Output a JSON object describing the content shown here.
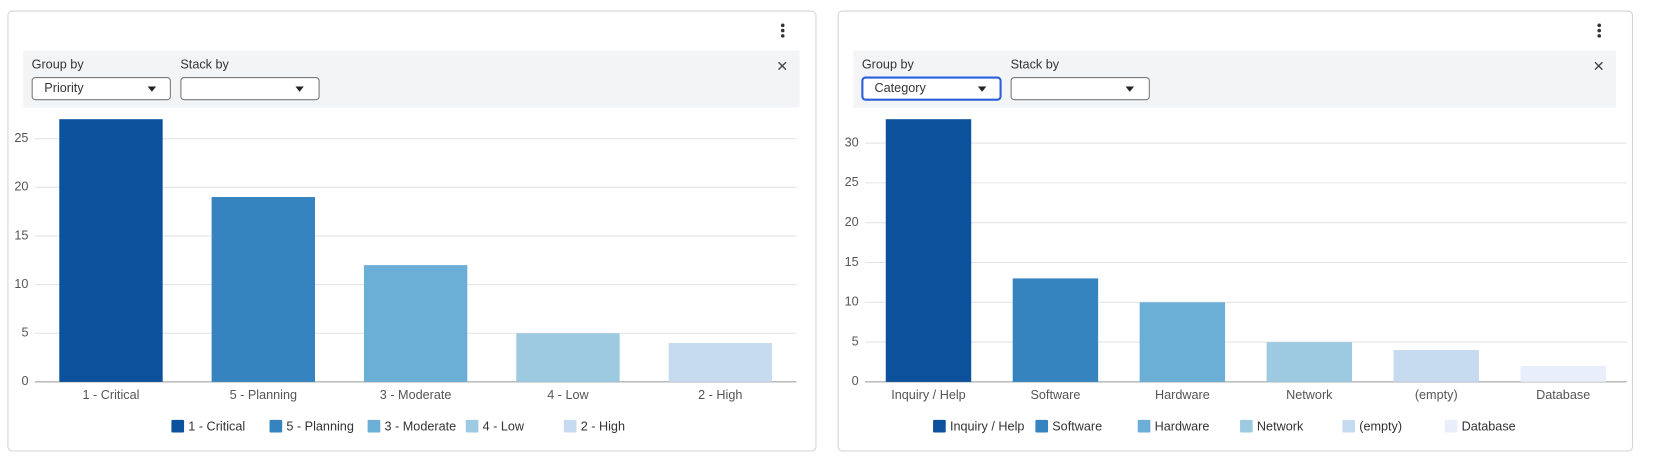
{
  "chart_data": [
    {
      "type": "bar",
      "group_by_label": "Group by",
      "group_by": "Priority",
      "stack_by_label": "Stack by",
      "categories": [
        "1 - Critical",
        "5 - Planning",
        "3 - Moderate",
        "4 - Low",
        "2 - High"
      ],
      "values": [
        27,
        19,
        12,
        5,
        4
      ],
      "colors": [
        "#0b519c",
        "#3584c0",
        "#6baed6",
        "#9ecae1",
        "#c6dbef"
      ],
      "ylim": [
        0,
        27
      ],
      "yticks": [
        0,
        5,
        10,
        15,
        20,
        25
      ],
      "grid": true,
      "legend": "bottom"
    },
    {
      "type": "bar",
      "group_by_label": "Group by",
      "group_by": "Category",
      "stack_by_label": "Stack by",
      "categories": [
        "Inquiry / Help",
        "Software",
        "Hardware",
        "Network",
        "(empty)",
        "Database"
      ],
      "values": [
        33,
        13,
        10,
        5,
        4,
        2
      ],
      "colors": [
        "#0b519c",
        "#3584c0",
        "#6baed6",
        "#9ecae1",
        "#c6dbef",
        "#e9eefb"
      ],
      "ylim": [
        0,
        33
      ],
      "yticks": [
        0,
        5,
        10,
        15,
        20,
        25,
        30
      ],
      "grid": true,
      "legend": "bottom"
    }
  ]
}
